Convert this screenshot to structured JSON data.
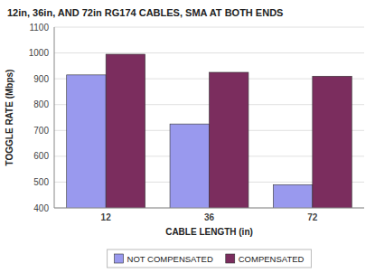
{
  "chart_data": {
    "type": "bar",
    "title": "12in, 36in, AND 72in RG174 CABLES, SMA AT BOTH ENDS",
    "categories": [
      "12",
      "36",
      "72"
    ],
    "series": [
      {
        "name": "NOT COMPENSATED",
        "color": "#9999EE",
        "values": [
          915,
          725,
          490
        ]
      },
      {
        "name": "COMPENSATED",
        "color": "#7B2D5E",
        "values": [
          995,
          925,
          910
        ]
      }
    ],
    "xlabel": "CABLE LENGTH (in)",
    "ylabel": "TOGGLE RATE (Mbps)",
    "ylim": [
      400,
      1100
    ],
    "yticks": [
      400,
      500,
      600,
      700,
      800,
      900,
      1000,
      1100
    ],
    "grid": true,
    "legend": "bottom"
  }
}
